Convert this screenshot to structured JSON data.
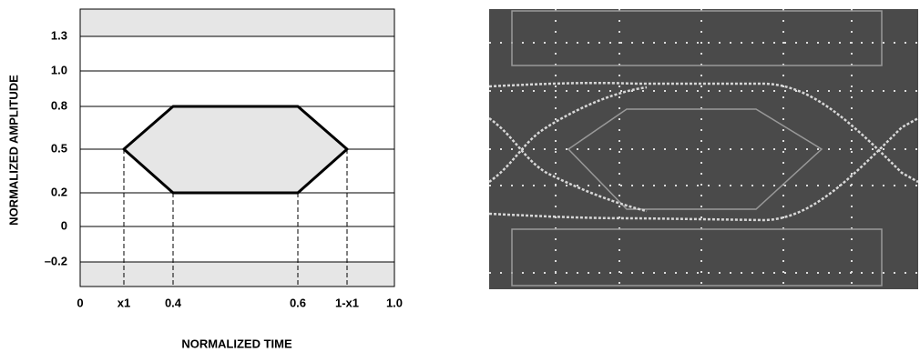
{
  "diagram": {
    "y_axis_title": "NORMALIZED AMPLITUDE",
    "x_axis_title": "NORMALIZED TIME",
    "y_labels": [
      "1.3",
      "1.0",
      "0.8",
      "0.5",
      "0.2",
      "0",
      "–0.2"
    ],
    "x_labels": [
      "0",
      "x1",
      "0.4",
      "0.6",
      "1-x1",
      "1.0"
    ]
  }
}
